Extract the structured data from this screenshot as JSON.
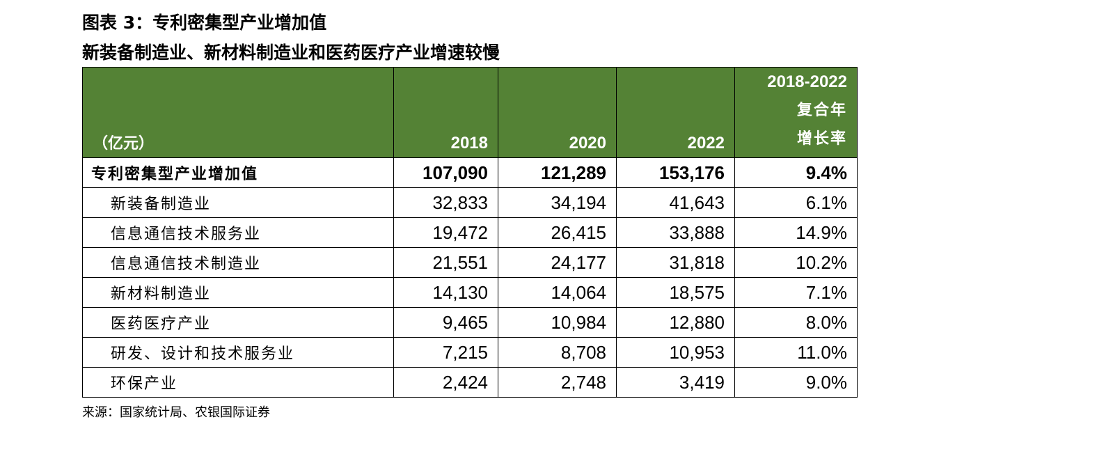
{
  "title": {
    "line1": "图表 3：专利密集型产业增加值",
    "line2": "新装备制造业、新材料制造业和医药医疗产业增速较慢"
  },
  "table": {
    "header": {
      "unit": "（亿元）",
      "years": [
        "2018",
        "2020",
        "2022"
      ],
      "cagr_range": "2018-2022",
      "cagr_line1": "复合年",
      "cagr_line2": "增长率"
    },
    "total": {
      "name": "专利密集型产业增加值",
      "values": [
        "107,090",
        "121,289",
        "153,176"
      ],
      "cagr": "9.4%"
    },
    "rows": [
      {
        "name": "新装备制造业",
        "values": [
          "32,833",
          "34,194",
          "41,643"
        ],
        "cagr": "6.1%"
      },
      {
        "name": "信息通信技术服务业",
        "values": [
          "19,472",
          "26,415",
          "33,888"
        ],
        "cagr": "14.9%"
      },
      {
        "name": "信息通信技术制造业",
        "values": [
          "21,551",
          "24,177",
          "31,818"
        ],
        "cagr": "10.2%"
      },
      {
        "name": "新材料制造业",
        "values": [
          "14,130",
          "14,064",
          "18,575"
        ],
        "cagr": "7.1%"
      },
      {
        "name": "医药医疗产业",
        "values": [
          "9,465",
          "10,984",
          "12,880"
        ],
        "cagr": "8.0%"
      },
      {
        "name": "研发、设计和技术服务业",
        "values": [
          "7,215",
          "8,708",
          "10,953"
        ],
        "cagr": "11.0%"
      },
      {
        "name": "环保产业",
        "values": [
          "2,424",
          "2,748",
          "3,419"
        ],
        "cagr": "9.0%"
      }
    ]
  },
  "source": "来源：国家统计局、农银国际证券",
  "colors": {
    "header_bg": "#548235",
    "header_text": "#ffffff"
  }
}
